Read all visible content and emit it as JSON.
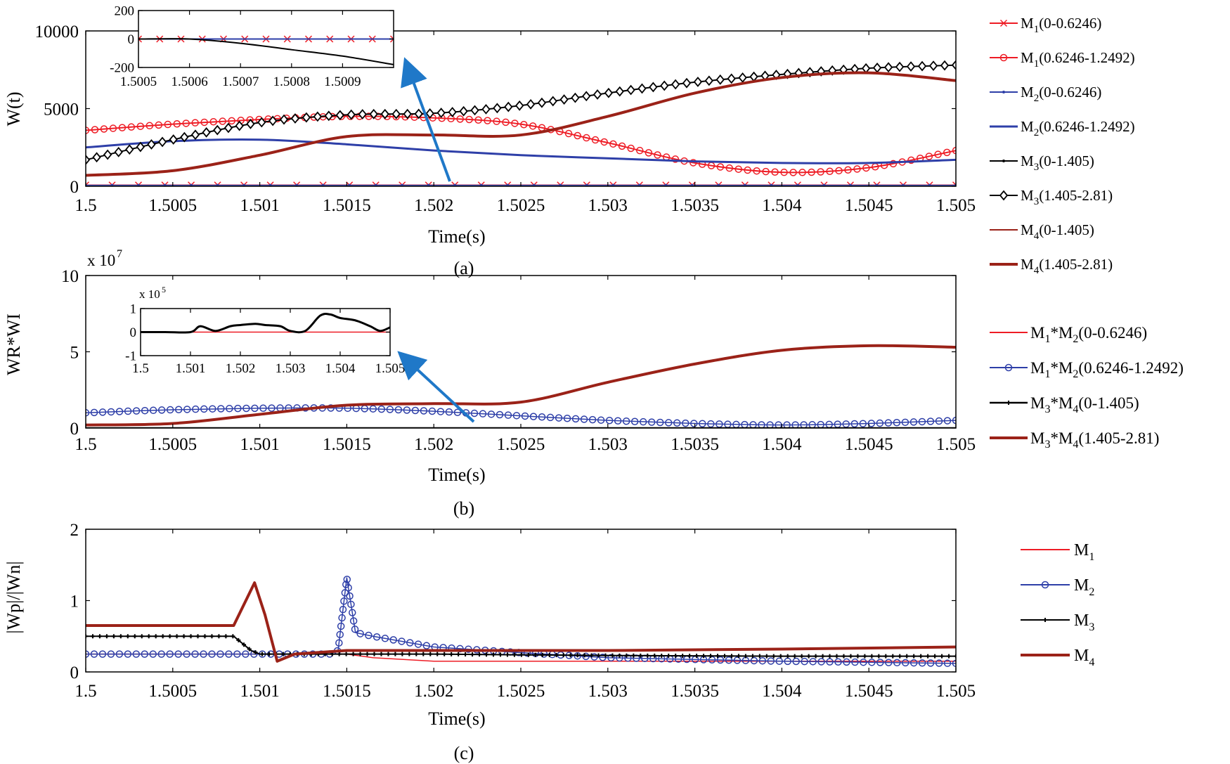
{
  "figure": {
    "panels": [
      "(a)",
      "(b)",
      "(c)"
    ]
  },
  "colors": {
    "red": "#ee1c25",
    "blue": "#2e3fa8",
    "black": "#000000",
    "darkred": "#9b2218",
    "arrow": "#1f78c8"
  },
  "chart_data": [
    {
      "type": "line",
      "panel": "(a)",
      "xlabel": "Time(s)",
      "ylabel": "W(t)",
      "xlim": [
        1.5,
        1.505
      ],
      "ylim": [
        0,
        10000
      ],
      "xticks": [
        "1.5",
        "1.5005",
        "1.501",
        "1.5015",
        "1.502",
        "1.5025",
        "1.503",
        "1.5035",
        "1.504",
        "1.5045",
        "1.505"
      ],
      "yticks": [
        "0",
        "5000",
        "10000"
      ],
      "x": [
        1.5,
        1.5005,
        1.501,
        1.5015,
        1.502,
        1.5025,
        1.503,
        1.5035,
        1.504,
        1.5045,
        1.505
      ],
      "series": [
        {
          "name": "M1(0-0.6246)",
          "sub": "1",
          "label_pre": "M",
          "label_post": "(0-0.6246)",
          "color": "#ee1c25",
          "width": 1.5,
          "marker": "x",
          "values": [
            80,
            80,
            80,
            80,
            80,
            80,
            80,
            80,
            80,
            80,
            80
          ]
        },
        {
          "name": "M1(0.6246-1.2492)",
          "sub": "1",
          "label_pre": "M",
          "label_post": "(0.6246-1.2492)",
          "color": "#ee1c25",
          "width": 2,
          "marker": "o",
          "values": [
            3600,
            4000,
            4300,
            4500,
            4400,
            4000,
            2800,
            1500,
            900,
            1200,
            2300
          ]
        },
        {
          "name": "M2(0-0.6246)",
          "sub": "2",
          "label_pre": "M",
          "label_post": "(0-0.6246)",
          "color": "#2e3fa8",
          "width": 1.5,
          "marker": "dot",
          "values": [
            60,
            60,
            60,
            60,
            60,
            60,
            60,
            60,
            60,
            60,
            60
          ]
        },
        {
          "name": "M2(0.6246-1.2492)",
          "sub": "2",
          "label_pre": "M",
          "label_post": "(0.6246-1.2492)",
          "color": "#2e3fa8",
          "width": 3,
          "marker": "none",
          "values": [
            2500,
            2900,
            3000,
            2700,
            2300,
            2000,
            1800,
            1600,
            1500,
            1500,
            1700
          ]
        },
        {
          "name": "M3(0-1.405)",
          "sub": "3",
          "label_pre": "M",
          "label_post": "(0-1.405)",
          "color": "#000000",
          "width": 1.5,
          "marker": "dot",
          "values": [
            -50,
            -50,
            -50,
            -60,
            -80,
            -100,
            -120,
            -140,
            -160,
            -170,
            -180
          ]
        },
        {
          "name": "M3(1.405-2.81)",
          "sub": "3",
          "label_pre": "M",
          "label_post": "(1.405-2.81)",
          "color": "#000000",
          "width": 2,
          "marker": "diamond",
          "values": [
            1700,
            3000,
            4100,
            4600,
            4700,
            5200,
            6000,
            6700,
            7200,
            7600,
            7800
          ]
        },
        {
          "name": "M4(0-1.405)",
          "sub": "4",
          "label_pre": "M",
          "label_post": "(0-1.405)",
          "color": "#9b2218",
          "width": 1,
          "marker": "none",
          "values": [
            -100,
            -100,
            -100,
            -100,
            -100,
            -100,
            -120,
            -160,
            -200,
            -160,
            -100
          ]
        },
        {
          "name": "M4(1.405-2.81)",
          "sub": "4",
          "label_pre": "M",
          "label_post": "(1.405-2.81)",
          "color": "#9b2218",
          "width": 4,
          "marker": "none",
          "values": [
            700,
            1000,
            2000,
            3200,
            3300,
            3300,
            4500,
            6000,
            7000,
            7300,
            6800
          ]
        }
      ],
      "inset": {
        "xlim": [
          1.5005,
          1.501
        ],
        "ylim": [
          -200,
          200
        ],
        "xticks": [
          "1.5005",
          "1.5006",
          "1.5007",
          "1.5008",
          "1.5009"
        ],
        "yticks": [
          "-200",
          "0",
          "200"
        ],
        "series": [
          {
            "name": "M1(0-0.6246)",
            "color": "#ee1c25",
            "marker": "x",
            "x": [
              1.5005,
              1.5006,
              1.5007,
              1.5008,
              1.5009,
              1.501
            ],
            "values": [
              0,
              0,
              0,
              0,
              0,
              0
            ]
          },
          {
            "name": "M2(0-0.6246)",
            "color": "#2e3fa8",
            "marker": "none",
            "x": [
              1.5005,
              1.5006,
              1.5007,
              1.5008,
              1.5009,
              1.501
            ],
            "values": [
              0,
              0,
              0,
              0,
              0,
              0
            ]
          },
          {
            "name": "M3(0-1.405)",
            "color": "#000000",
            "marker": "none",
            "x": [
              1.5005,
              1.5006,
              1.5007,
              1.5008,
              1.5009,
              1.501
            ],
            "values": [
              0,
              0,
              -30,
              -75,
              -120,
              -180
            ]
          }
        ]
      },
      "legend": "right"
    },
    {
      "type": "line",
      "panel": "(b)",
      "xlabel": "Time(s)",
      "ylabel": "WR*WI",
      "yscale_label": "x 10",
      "yscale_exp": "7",
      "xlim": [
        1.5,
        1.505
      ],
      "ylim": [
        0,
        10
      ],
      "xticks": [
        "1.5",
        "1.5005",
        "1.501",
        "1.5015",
        "1.502",
        "1.5025",
        "1.503",
        "1.5035",
        "1.504",
        "1.5045",
        "1.505"
      ],
      "yticks": [
        "0",
        "5",
        "10"
      ],
      "x": [
        1.5,
        1.5005,
        1.501,
        1.5015,
        1.502,
        1.5025,
        1.503,
        1.5035,
        1.504,
        1.5045,
        1.505
      ],
      "series": [
        {
          "name": "M1*M2(0-0.6246)",
          "label": "M1*M2(0-0.6246)",
          "color": "#ee1c25",
          "width": 2,
          "marker": "none",
          "values": [
            0,
            0,
            0,
            0,
            0,
            0,
            0,
            0,
            0,
            0,
            0
          ]
        },
        {
          "name": "M1*M2(0.6246-1.2492)",
          "label": "M1*M2(0.6246-1.2492)",
          "color": "#2e3fa8",
          "width": 1.5,
          "marker": "o",
          "values": [
            1.0,
            1.2,
            1.3,
            1.3,
            1.1,
            0.8,
            0.5,
            0.3,
            0.2,
            0.3,
            0.5
          ]
        },
        {
          "name": "M3*M4(0-1.405)",
          "label": "M3*M4(0-1.405)",
          "color": "#000000",
          "width": 2.5,
          "marker": "none",
          "values": [
            0,
            0,
            0,
            0,
            0,
            0,
            0,
            0,
            0,
            0,
            0
          ]
        },
        {
          "name": "M3*M4(1.405-2.81)",
          "label": "M3*M4(1.405-2.81)",
          "color": "#9b2218",
          "width": 4,
          "marker": "none",
          "values": [
            0.2,
            0.3,
            0.9,
            1.5,
            1.6,
            1.7,
            3.0,
            4.2,
            5.1,
            5.4,
            5.3
          ]
        }
      ],
      "inset": {
        "yscale_label": "x 10",
        "yscale_exp": "5",
        "xlim": [
          1.5,
          1.505
        ],
        "ylim": [
          -1,
          1
        ],
        "xticks": [
          "1.5",
          "1.501",
          "1.502",
          "1.503",
          "1.504",
          "1.505"
        ],
        "yticks": [
          "-1",
          "0",
          "1"
        ],
        "series": [
          {
            "name": "M1*M2(0-0.6246)",
            "color": "#ee1c25",
            "marker": "none",
            "x": [
              1.5,
              1.505
            ],
            "values": [
              0,
              0
            ]
          },
          {
            "name": "M3*M4(0-1.405)",
            "color": "#000000",
            "marker": "none",
            "x": [
              1.5,
              1.5005,
              1.501,
              1.5012,
              1.5015,
              1.5018,
              1.502,
              1.5023,
              1.5025,
              1.5028,
              1.503,
              1.5033,
              1.5036,
              1.5038,
              1.504,
              1.5043,
              1.5046,
              1.5048,
              1.505
            ],
            "values": [
              0,
              0,
              0,
              0.25,
              0.05,
              0.25,
              0.3,
              0.35,
              0.3,
              0.25,
              0.05,
              0.05,
              0.7,
              0.75,
              0.6,
              0.5,
              0.25,
              0.05,
              0.2
            ]
          }
        ]
      },
      "legend": "right"
    },
    {
      "type": "line",
      "panel": "(c)",
      "xlabel": "Time(s)",
      "ylabel": "|Wp|/|Wn|",
      "xlim": [
        1.5,
        1.505
      ],
      "ylim": [
        0,
        2
      ],
      "xticks": [
        "1.5",
        "1.5005",
        "1.501",
        "1.5015",
        "1.502",
        "1.5025",
        "1.503",
        "1.5035",
        "1.504",
        "1.5045",
        "1.505"
      ],
      "yticks": [
        "0",
        "1",
        "2"
      ],
      "series": [
        {
          "name": "M1",
          "sub": "1",
          "color": "#ee1c25",
          "width": 1.5,
          "marker": "none",
          "x": [
            1.5,
            1.50085,
            1.5009,
            1.501,
            1.5015,
            1.50165,
            1.502,
            1.503,
            1.504,
            1.505
          ],
          "values": [
            0.25,
            0.25,
            0.25,
            0.25,
            0.25,
            0.2,
            0.15,
            0.15,
            0.15,
            0.15
          ]
        },
        {
          "name": "M2",
          "sub": "2",
          "color": "#2e3fa8",
          "width": 1.5,
          "marker": "o",
          "x": [
            1.5,
            1.50085,
            1.501,
            1.5014,
            1.50145,
            1.5015,
            1.50155,
            1.50165,
            1.502,
            1.5025,
            1.503,
            1.504,
            1.505
          ],
          "values": [
            0.25,
            0.25,
            0.25,
            0.25,
            0.3,
            1.32,
            0.55,
            0.5,
            0.35,
            0.27,
            0.2,
            0.15,
            0.12
          ]
        },
        {
          "name": "M3",
          "sub": "3",
          "color": "#000000",
          "width": 2,
          "marker": "plus",
          "x": [
            1.5,
            1.50085,
            1.50095,
            1.501,
            1.5015,
            1.502,
            1.503,
            1.504,
            1.505
          ],
          "values": [
            0.5,
            0.5,
            0.3,
            0.25,
            0.25,
            0.25,
            0.23,
            0.22,
            0.22
          ]
        },
        {
          "name": "M4",
          "sub": "4",
          "color": "#9b2218",
          "width": 4,
          "marker": "none",
          "x": [
            1.5,
            1.50085,
            1.50097,
            1.50103,
            1.5011,
            1.5012,
            1.5015,
            1.502,
            1.503,
            1.504,
            1.505
          ],
          "values": [
            0.65,
            0.65,
            1.25,
            0.8,
            0.15,
            0.25,
            0.3,
            0.3,
            0.3,
            0.32,
            0.35
          ]
        }
      ],
      "legend": "right"
    }
  ]
}
